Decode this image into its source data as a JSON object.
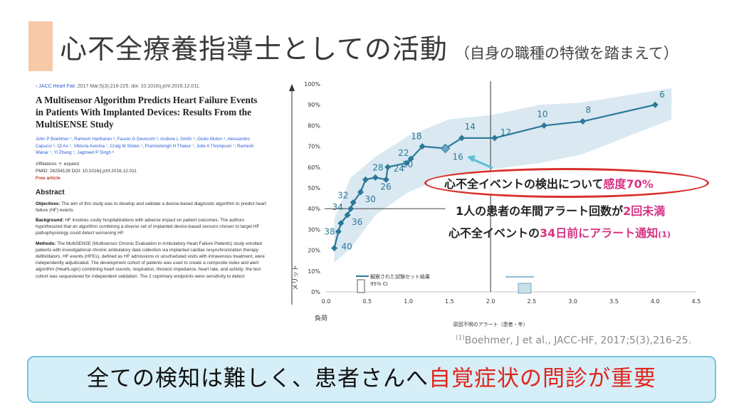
{
  "slide": {
    "title": "心不全療養指導士としての活動",
    "subtitle": "（自身の職種の特徴を踏まえて）"
  },
  "paper": {
    "journal": "JACC Heart Fail.",
    "journal_rest": " 2017 Mar;5(3):216-225. doi: 10.1016/j.jchf.2016.12.011.",
    "title": "A Multisensor Algorithm Predicts Heart Failure Events in Patients With Implanted Devices: Results From the MultiSENSE Study",
    "authors": "John P Boehmer ¹, Ramesh Hariharan ², Fausto G Devecchi ³, Andrew L Smith ⁴, Giulio Molon ⁵, Alessandro Capucci ⁶, Qi An ⁷, Viktoria Averina ⁷, Craig M Stolen ⁷, Pramodsingh H Thakur ⁷, Julie A Thompson ⁷, Ramesh Wariar ⁷, Yi Zhang ⁷, Jagmeet P Singh ⁸",
    "affiliations": "Affiliations  ＋ expand",
    "pmid": "PMID: 28254128   DOI: 10.1016/j.jchf.2016.12.011",
    "free": "Free article",
    "abstract_heading": "Abstract",
    "objectives_label": "Objectives:",
    "objectives": " The aim of this study was to develop and validate a device-based diagnostic algorithm to predict heart failure (HF) events.",
    "background_label": "Background:",
    "background": " HF involves costly hospitalizations with adverse impact on patient outcomes. The authors hypothesized that an algorithm combining a diverse set of implanted device-based sensors chosen to target HF pathophysiology could detect worsening HF.",
    "methods_label": "Methods:",
    "methods": " The MultiSENSE (Multisensor Chronic Evaluation in Ambulatory Heart Failure Patients) study enrolled patients with investigational chronic ambulatory data collection via implanted cardiac resynchronization therapy defibrillators. HF events (HFEs), defined as HF admissions or unscheduled visits with intravenous treatment, were independently adjudicated. The development cohort of patients was used to create a composite index and alert algorithm (HeartLogic) combining heart sounds, respiration, thoracic impedance, heart rate, and activity; the test cohort was sequestered for independent validation. The 2 coprimary endpoints were sensitivity to detect"
  },
  "chart_data": {
    "type": "line",
    "xlabel": "原因不明のアラート（患者・年）",
    "ylabel": "メリット",
    "x_axis_side_label": "負荷",
    "xlim": [
      0,
      4.5
    ],
    "ylim": [
      0,
      100
    ],
    "x_ticks": [
      "0.0",
      "0.5",
      "1.0",
      "1.5",
      "2.0",
      "2.5",
      "3.0",
      "3.5",
      "4.0",
      "4.5"
    ],
    "y_ticks": [
      "0%",
      "10%",
      "20%",
      "30%",
      "40%",
      "50%",
      "60%",
      "70%",
      "80%",
      "90%",
      "100%"
    ],
    "reference_x": 2.0,
    "reference_y": 40,
    "legend_line": "観察された試験セット結果",
    "legend_ci": "95% CI",
    "points": [
      {
        "label": "40",
        "x": 0.1,
        "y": 21
      },
      {
        "label": "38",
        "x": 0.15,
        "y": 29
      },
      {
        "label": "",
        "x": 0.18,
        "y": 33
      },
      {
        "label": "36",
        "x": 0.26,
        "y": 37
      },
      {
        "label": "34",
        "x": 0.3,
        "y": 40
      },
      {
        "label": "32",
        "x": 0.33,
        "y": 43
      },
      {
        "label": "30",
        "x": 0.42,
        "y": 48
      },
      {
        "label": "",
        "x": 0.48,
        "y": 54
      },
      {
        "label": "28",
        "x": 0.6,
        "y": 55
      },
      {
        "label": "26",
        "x": 0.73,
        "y": 54
      },
      {
        "label": "24",
        "x": 0.75,
        "y": 60
      },
      {
        "label": "22",
        "x": 0.98,
        "y": 62
      },
      {
        "label": "20",
        "x": 1.03,
        "y": 64
      },
      {
        "label": "18",
        "x": 1.17,
        "y": 70
      },
      {
        "label": "16",
        "x": 1.45,
        "y": 69
      },
      {
        "label": "14",
        "x": 1.65,
        "y": 74
      },
      {
        "label": "12",
        "x": 2.05,
        "y": 74
      },
      {
        "label": "10",
        "x": 2.65,
        "y": 80
      },
      {
        "label": "8",
        "x": 3.12,
        "y": 82
      },
      {
        "label": "6",
        "x": 4.0,
        "y": 90
      }
    ],
    "ci_upper": [
      [
        0.1,
        35
      ],
      [
        0.3,
        55
      ],
      [
        0.6,
        65
      ],
      [
        1.0,
        75
      ],
      [
        1.5,
        83
      ],
      [
        2.0,
        85
      ],
      [
        2.6,
        90
      ],
      [
        3.1,
        91
      ],
      [
        4.2,
        98
      ]
    ],
    "ci_lower": [
      [
        4.2,
        83
      ],
      [
        3.1,
        66
      ],
      [
        2.6,
        62
      ],
      [
        2.0,
        59
      ],
      [
        1.5,
        56
      ],
      [
        1.0,
        48
      ],
      [
        0.6,
        37
      ],
      [
        0.3,
        21
      ],
      [
        0.1,
        14
      ]
    ],
    "colors": {
      "line": "#2b7898",
      "marker": "#2b7898",
      "band": "#d2e4ee",
      "highlight": "#6aa8c4"
    }
  },
  "callouts": {
    "c1_pre": "心不全イベントの検出について",
    "c1_hl": "感度70%",
    "c2_pre": "1人の患者の年間アラート回数が",
    "c2_hl": "2回未満",
    "c3_pre": "心不全イベントの",
    "c3_hl": "34日前にアラート通知",
    "c3_ref": "(1)"
  },
  "citation": {
    "sup": "(1)",
    "text": "Boehmer, J et al., JACC-HF, 2017;5(3),216-25."
  },
  "banner": {
    "text_black": "全ての検知は難しく、患者さんへ",
    "text_red": "自覚症状の問診が重要"
  }
}
